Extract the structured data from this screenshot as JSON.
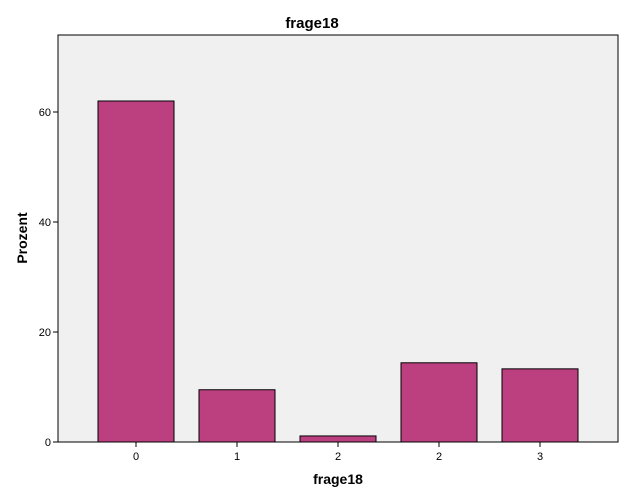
{
  "chart_data": {
    "type": "bar",
    "title": "frage18",
    "xlabel": "frage18",
    "ylabel": "Prozent",
    "categories": [
      "0",
      "1",
      "2",
      "2",
      "3"
    ],
    "values": [
      62.0,
      9.5,
      1.1,
      14.4,
      13.3
    ],
    "yticks": [
      0,
      20,
      40,
      60
    ],
    "ylim": [
      0,
      74
    ],
    "grid": false,
    "bar_color": "#bc3f7f",
    "plot_background": "#f0f0f0"
  }
}
